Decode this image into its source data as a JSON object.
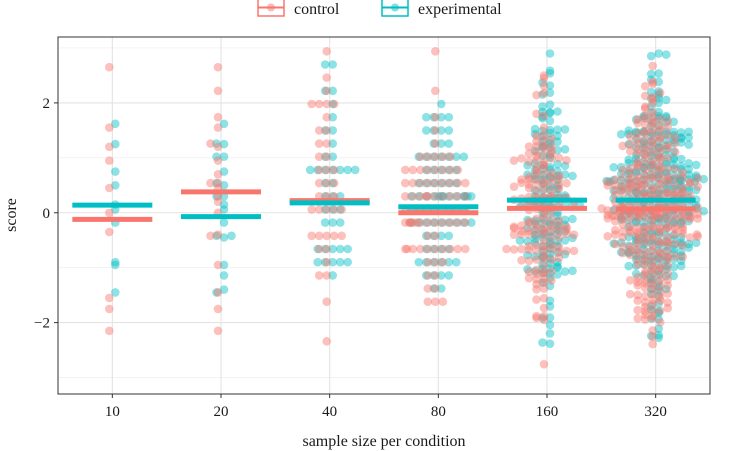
{
  "chart_data": {
    "type": "scatter",
    "subtype": "beeswarm-with-mean-bars",
    "title": "",
    "xlabel": "sample size per condition",
    "ylabel": "score",
    "categories": [
      "10",
      "20",
      "40",
      "80",
      "160",
      "320"
    ],
    "ylim": [
      -3.3,
      3.2
    ],
    "yticks": [
      -2,
      0,
      2
    ],
    "grid": true,
    "legend": {
      "position": "top",
      "entries": [
        {
          "name": "control",
          "color": "#F8766D"
        },
        {
          "name": "experimental",
          "color": "#00BFC4"
        }
      ]
    },
    "series": [
      {
        "name": "control",
        "color": "#F8766D",
        "means": [
          -0.12,
          0.38,
          0.22,
          0.0,
          0.08,
          0.07
        ],
        "sample_points": {
          "10": [
            2.65,
            1.55,
            1.2,
            0.95,
            0.45,
            0.0,
            -0.35,
            -1.55,
            -1.75,
            -2.15
          ],
          "20": [
            2.65,
            2.22,
            1.55,
            1.2,
            0.95,
            0.7,
            0.45,
            0.2,
            0.0,
            -0.4,
            -0.95,
            -1.45,
            -1.75,
            -2.15
          ]
        }
      },
      {
        "name": "experimental",
        "color": "#00BFC4",
        "means": [
          0.14,
          -0.07,
          0.18,
          0.11,
          0.23,
          0.23
        ],
        "sample_points": {
          "10": [
            1.62,
            1.25,
            0.75,
            0.5,
            0.15,
            -0.95,
            -1.45
          ],
          "20": [
            1.62,
            1.25,
            0.75,
            0.5,
            0.3,
            0.15,
            -0.45,
            -0.95,
            -1.4,
            -1.45
          ]
        }
      }
    ]
  }
}
